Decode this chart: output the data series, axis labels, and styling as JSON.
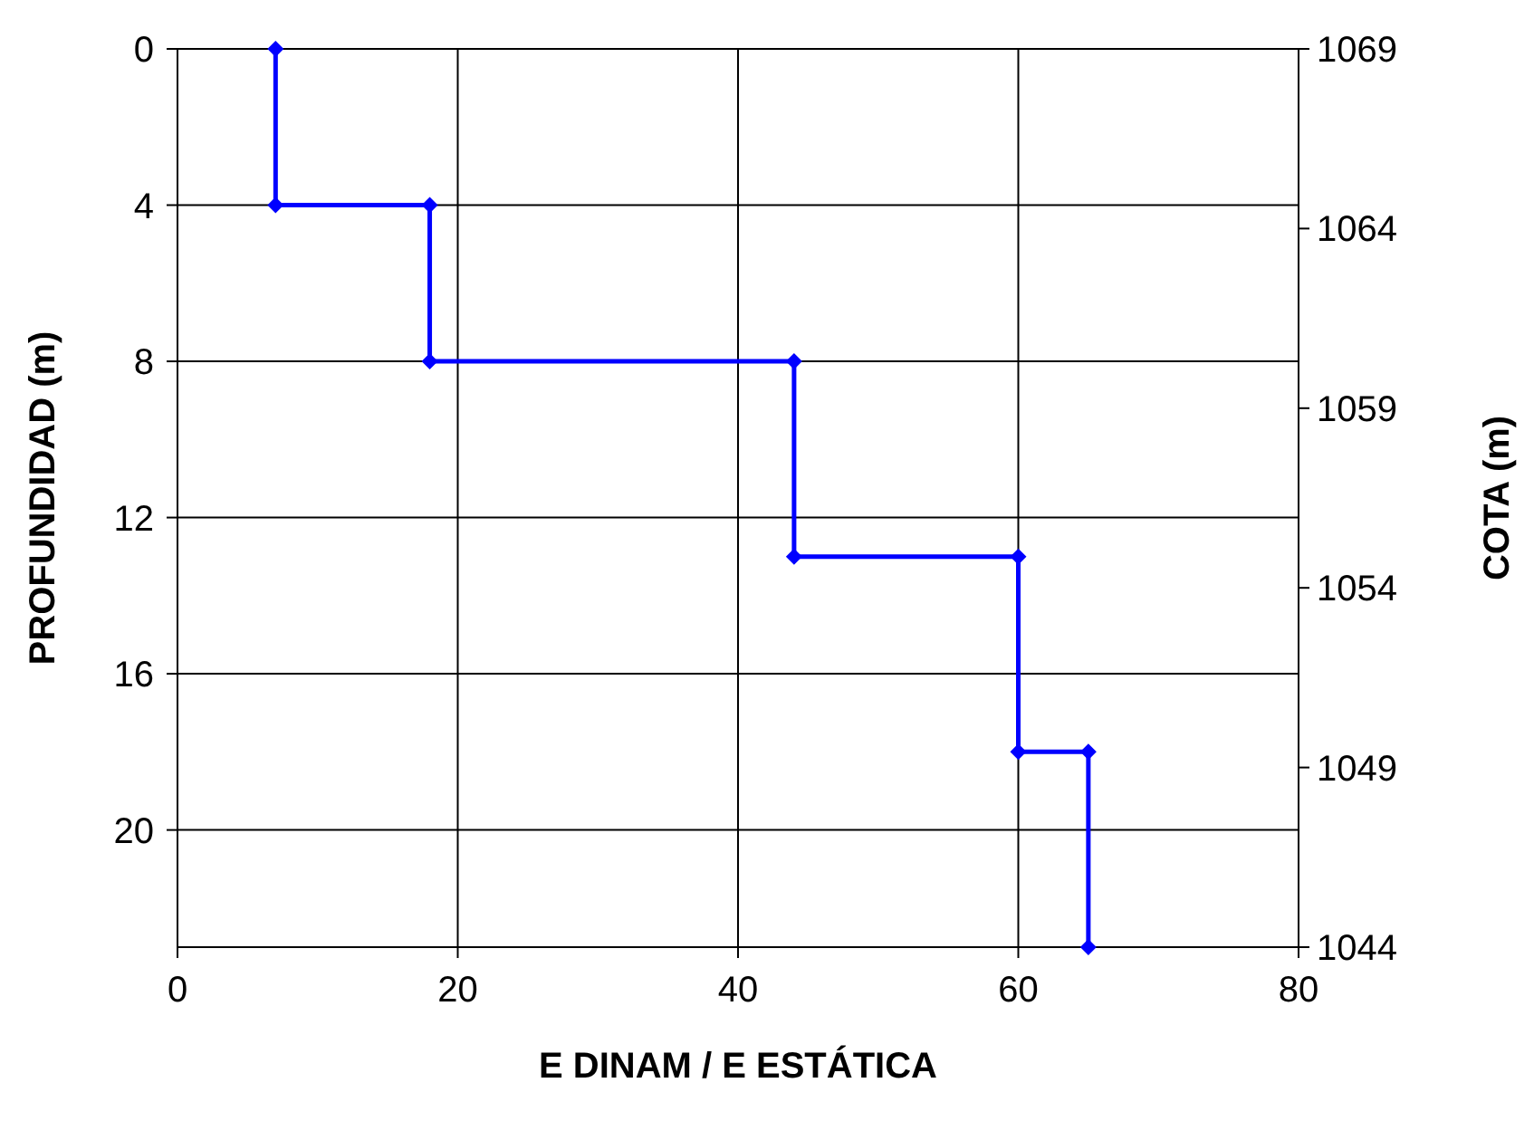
{
  "chart_data": {
    "type": "line",
    "xlabel": "E DINAM / E ESTÁTICA",
    "ylabel": "PROFUNDIDAD (m)",
    "y2label": "COTA (m)",
    "x": [
      7,
      7,
      18,
      18,
      44,
      44,
      60,
      60,
      65,
      65
    ],
    "series": [
      {
        "color": "#0000ff",
        "values": [
          0,
          4,
          4,
          8,
          8,
          13,
          13,
          18,
          18,
          23
        ]
      }
    ],
    "xlim": [
      0,
      80
    ],
    "xticks": [
      0,
      20,
      40,
      60,
      80
    ],
    "ylim": [
      23,
      0
    ],
    "yticks": [
      0,
      4,
      8,
      12,
      16,
      20
    ],
    "y2lim": [
      1044,
      1069
    ],
    "y2ticks": [
      1044,
      1049,
      1054,
      1059,
      1064,
      1069
    ],
    "grid": true,
    "marker": "diamond",
    "line_style": "solid"
  }
}
